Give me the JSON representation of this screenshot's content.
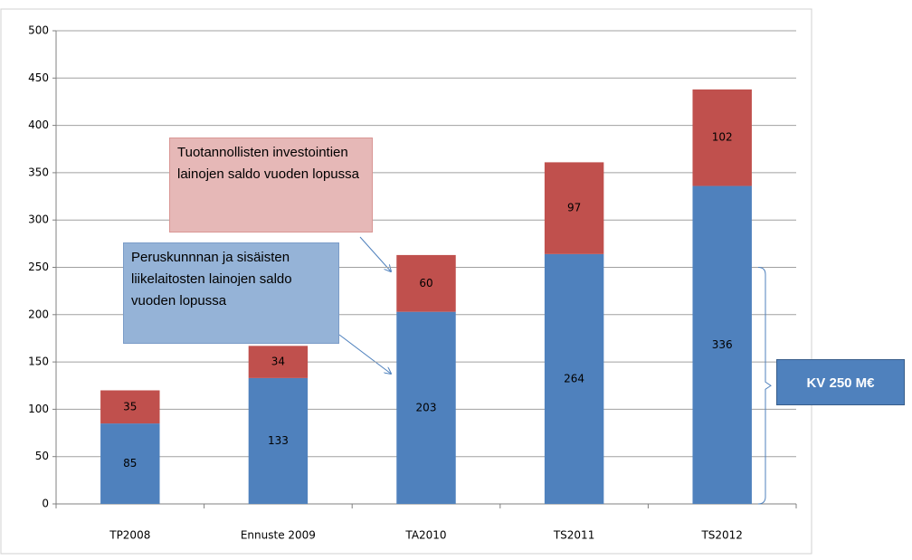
{
  "chart_data": {
    "type": "stacked_bar",
    "categories": [
      "TP2008",
      "Ennuste 2009",
      "TA2010",
      "TS2011",
      "TS2012"
    ],
    "series": [
      {
        "name": "Peruskunnnan ja sisäisten liikelaitosten lainojen saldo vuoden lopussa",
        "color": "#4f81bd",
        "values": [
          85,
          133,
          203,
          264,
          336
        ]
      },
      {
        "name": "Tuotannollisten investointien lainojen saldo vuoden lopussa",
        "color": "#c0504d",
        "values": [
          35,
          34,
          60,
          97,
          102
        ]
      }
    ],
    "ylim": [
      0,
      500
    ],
    "yticks": [
      0,
      50,
      100,
      150,
      200,
      250,
      300,
      350,
      400,
      450,
      500
    ],
    "grid": true,
    "annotations": [
      {
        "text": "KV 250 M€",
        "range": [
          0,
          250
        ]
      }
    ]
  }
}
